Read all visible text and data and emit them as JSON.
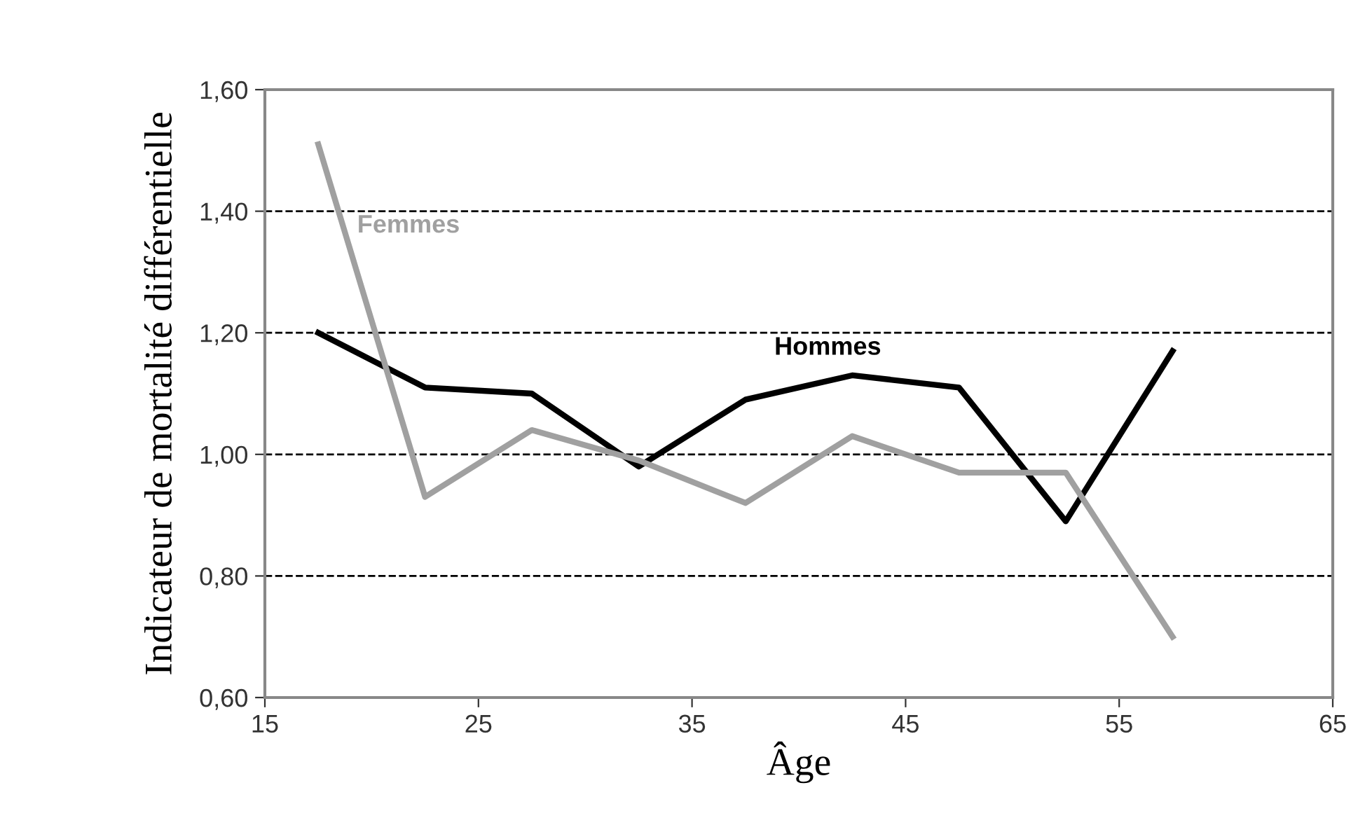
{
  "chart_data": {
    "type": "line",
    "xlabel": "Âge",
    "ylabel": "Indicateur de mortalité différentielle",
    "x": [
      17.5,
      22.5,
      27.5,
      32.5,
      37.5,
      42.5,
      47.5,
      52.5,
      57.5
    ],
    "series": [
      {
        "name": "Hommes",
        "color": "#000000",
        "values": [
          1.2,
          1.11,
          1.1,
          0.98,
          1.09,
          1.13,
          1.11,
          0.89,
          1.17
        ]
      },
      {
        "name": "Femmes",
        "color": "#a0a0a0",
        "values": [
          1.51,
          0.93,
          1.04,
          0.99,
          0.92,
          1.03,
          0.97,
          0.97,
          0.7
        ]
      }
    ],
    "xlim": [
      15,
      65
    ],
    "xticks": [
      15,
      25,
      35,
      45,
      55,
      65
    ],
    "ylim": [
      0.6,
      1.6
    ],
    "yticks": [
      {
        "value": 0.6,
        "label": "0,60"
      },
      {
        "value": 0.8,
        "label": "0,80"
      },
      {
        "value": 1.0,
        "label": "1,00"
      },
      {
        "value": 1.2,
        "label": "1,20"
      },
      {
        "value": 1.4,
        "label": "1,40"
      },
      {
        "value": 1.6,
        "label": "1,60"
      }
    ],
    "grid": "y",
    "line_style": "solid",
    "marker": "none"
  }
}
